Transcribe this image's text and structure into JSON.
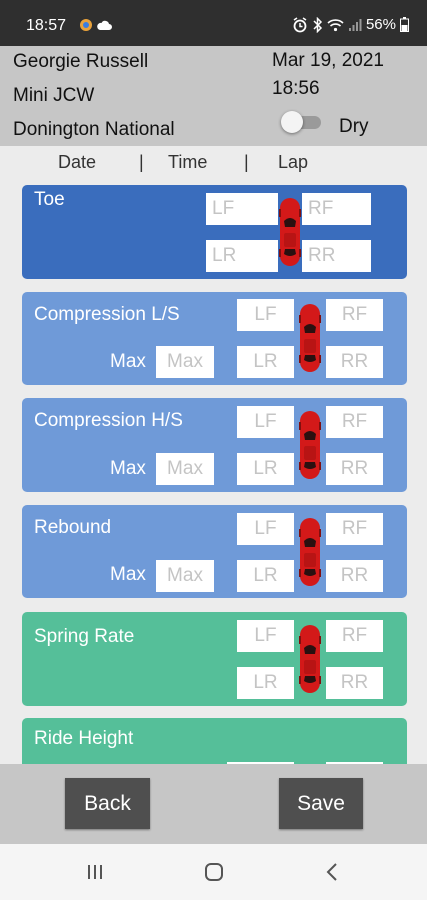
{
  "status_bar": {
    "time": "18:57",
    "battery": "56%"
  },
  "session": {
    "driver": "Georgie Russell",
    "car": "Mini JCW",
    "track": "Donington National",
    "date": "Mar 19, 2021",
    "time": "18:56",
    "condition_label": "Dry",
    "condition_toggle_on": false
  },
  "columns": {
    "date": "Date",
    "sep1": "|",
    "time": "Time",
    "sep2": "|",
    "lap": "Lap"
  },
  "corner_placeholders": {
    "lf": "LF",
    "rf": "RF",
    "lr": "LR",
    "rr": "RR"
  },
  "max_label": "Max",
  "max_placeholder": "Max",
  "sections": [
    {
      "title": "Toe"
    },
    {
      "title": "Compression L/S"
    },
    {
      "title": "Compression H/S"
    },
    {
      "title": "Rebound"
    },
    {
      "title": "Spring Rate"
    },
    {
      "title": "Ride Height"
    }
  ],
  "buttons": {
    "back": "Back",
    "save": "Save"
  },
  "colors": {
    "toe_card": "#3a6dbd",
    "damper_card": "#6f9ad8",
    "spring_card": "#55bf99",
    "car_icon": "#d31919"
  },
  "icons": [
    "alarm-icon",
    "bluetooth-icon",
    "wifi-icon",
    "signal-icon",
    "battery-icon",
    "recents-icon",
    "home-icon",
    "back-icon",
    "car-icon"
  ]
}
